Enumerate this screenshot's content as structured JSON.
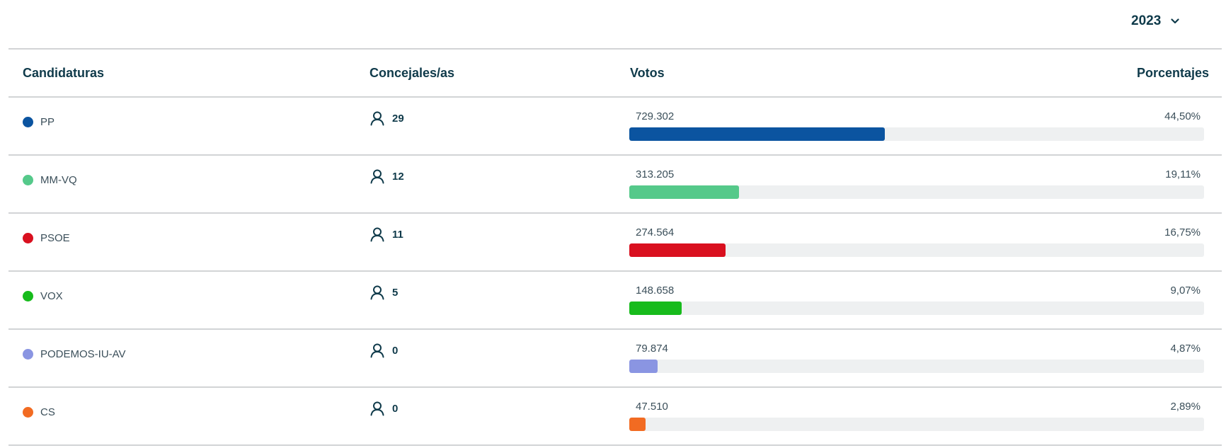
{
  "year_selector": {
    "value": "2023",
    "icon": "chevron-down-icon"
  },
  "table": {
    "headers": {
      "candidaturas": "Candidaturas",
      "concejales": "Concejales/as",
      "votos": "Votos",
      "porcentajes": "Porcentajes"
    },
    "rows": [
      {
        "party": "PP",
        "color": "#0b54a0",
        "seats": "29",
        "votes": "729.302",
        "percent": "44,50%",
        "share": 44.5
      },
      {
        "party": "MM-VQ",
        "color": "#55c98a",
        "seats": "12",
        "votes": "313.205",
        "percent": "19,11%",
        "share": 19.11
      },
      {
        "party": "PSOE",
        "color": "#d9101f",
        "seats": "11",
        "votes": "274.564",
        "percent": "16,75%",
        "share": 16.75
      },
      {
        "party": "VOX",
        "color": "#17bb1c",
        "seats": "5",
        "votes": "148.658",
        "percent": "9,07%",
        "share": 9.07
      },
      {
        "party": "PODEMOS-IU-AV",
        "color": "#8a95e2",
        "seats": "0",
        "votes": "79.874",
        "percent": "4,87%",
        "share": 4.87
      },
      {
        "party": "CS",
        "color": "#f26b22",
        "seats": "0",
        "votes": "47.510",
        "percent": "2,89%",
        "share": 2.89
      }
    ]
  }
}
